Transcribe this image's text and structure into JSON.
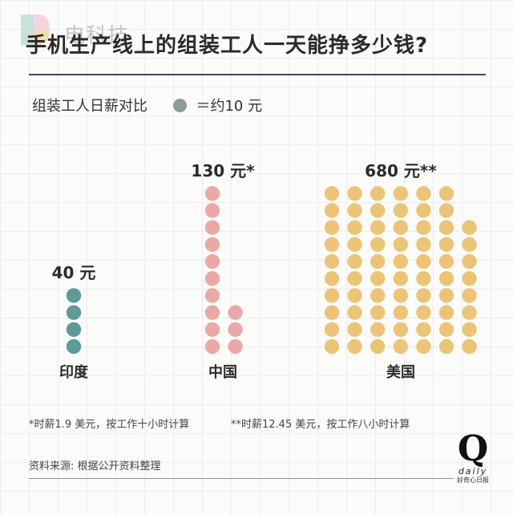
{
  "watermark": {
    "text": "电科技"
  },
  "title": "手机生产线上的组装工人一天能挣多少钱?",
  "legend": {
    "label": "组装工人日薪对比",
    "value_text": "＝约10 元"
  },
  "footnotes": {
    "china": "*时薪1.9 美元，按工作十小时计算",
    "usa": "**时薪12.45 美元，按工作八小时计算"
  },
  "source": "资料来源: 根据公开资料整理",
  "brand": {
    "letter": "Q",
    "word": "daily",
    "sub": "好奇心日报"
  },
  "chart_data": {
    "type": "pictograph",
    "unit_value": 10,
    "unit_label": "约10 元",
    "categories": [
      "印度",
      "中国",
      "美国"
    ],
    "values": [
      40,
      130,
      680
    ],
    "value_labels": [
      "40 元",
      "130 元*",
      "680 元**"
    ],
    "dot_counts": [
      4,
      13,
      68
    ],
    "colors": [
      "#5e9b98",
      "#eaa9a6",
      "#ecc478"
    ],
    "legend_dot_color": "#8c9c9a"
  }
}
